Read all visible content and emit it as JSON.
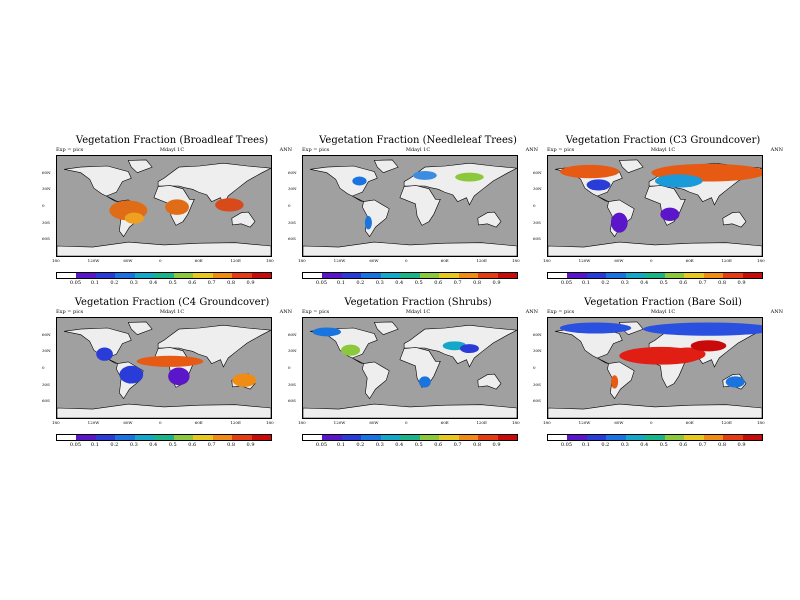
{
  "figure": {
    "colorbar": {
      "labels": [
        "0.05",
        "0.1",
        "0.2",
        "0.3",
        "0.4",
        "0.5",
        "0.6",
        "0.7",
        "0.8",
        "0.9"
      ],
      "colors": [
        "#ffffff",
        "#5a16c8",
        "#2a3cd8",
        "#1a74e0",
        "#14a8c8",
        "#1ab48a",
        "#8cc83c",
        "#e6c81e",
        "#f08c14",
        "#e63c14",
        "#c80a0a"
      ]
    },
    "lat_labels": [
      "60N",
      "30N",
      "0",
      "30S",
      "60S"
    ],
    "lon_labels": [
      "180",
      "120W",
      "60W",
      "0",
      "60E",
      "120E",
      "180"
    ],
    "land_color": "#eeeeee",
    "ocean_color": "#a0a0a0"
  },
  "panels": [
    {
      "title": "Vegetation Fraction (Broadleaf Trees)",
      "left_meta": "Exp = pics",
      "mid_meta": "Mdayl 1C",
      "right_meta": "ANN",
      "patches": [
        {
          "lon": -60,
          "lat": -8,
          "rx": 16,
          "ry": 9,
          "c": "#e06c18"
        },
        {
          "lon": 22,
          "lat": -2,
          "rx": 10,
          "ry": 7,
          "c": "#e06c18"
        },
        {
          "lon": 110,
          "lat": 2,
          "rx": 12,
          "ry": 6,
          "c": "#d84a1a"
        },
        {
          "lon": -50,
          "lat": -22,
          "rx": 8,
          "ry": 5,
          "c": "#f0a020"
        }
      ]
    },
    {
      "title": "Vegetation Fraction (Needleleaf Trees)",
      "left_meta": "Exp = pics",
      "mid_meta": "Mdayl 1C",
      "right_meta": "ANN",
      "patches": [
        {
          "lon": 25,
          "lat": 55,
          "rx": 10,
          "ry": 4,
          "c": "#3c8ce0"
        },
        {
          "lon": -85,
          "lat": 45,
          "rx": 6,
          "ry": 4,
          "c": "#1a74e0"
        },
        {
          "lon": 100,
          "lat": 52,
          "rx": 12,
          "ry": 4,
          "c": "#8cc83c"
        },
        {
          "lon": -70,
          "lat": -30,
          "rx": 3,
          "ry": 6,
          "c": "#1a74e0"
        }
      ]
    },
    {
      "title": "Vegetation Fraction (C3 Groundcover)",
      "left_meta": "Exp = pics",
      "mid_meta": "Mdayl 1C",
      "right_meta": "ANN",
      "patches": [
        {
          "lon": 90,
          "lat": 60,
          "rx": 48,
          "ry": 8,
          "c": "#e65a14"
        },
        {
          "lon": -110,
          "lat": 62,
          "rx": 25,
          "ry": 6,
          "c": "#e65a14"
        },
        {
          "lon": 40,
          "lat": 45,
          "rx": 20,
          "ry": 6,
          "c": "#1a9ad8"
        },
        {
          "lon": -95,
          "lat": 38,
          "rx": 10,
          "ry": 5,
          "c": "#2a3cd8"
        },
        {
          "lon": -60,
          "lat": -30,
          "rx": 7,
          "ry": 9,
          "c": "#5a16c8"
        },
        {
          "lon": 25,
          "lat": -15,
          "rx": 8,
          "ry": 6,
          "c": "#5a16c8"
        }
      ]
    },
    {
      "title": "Vegetation Fraction (C4 Groundcover)",
      "left_meta": "Exp = pics",
      "mid_meta": "Mdayl 1C",
      "right_meta": "ANN",
      "patches": [
        {
          "lon": 10,
          "lat": 12,
          "rx": 28,
          "ry": 5,
          "c": "#e65a14"
        },
        {
          "lon": 135,
          "lat": -22,
          "rx": 10,
          "ry": 6,
          "c": "#f08c14"
        },
        {
          "lon": -55,
          "lat": -12,
          "rx": 10,
          "ry": 8,
          "c": "#2a3cd8"
        },
        {
          "lon": 25,
          "lat": -15,
          "rx": 9,
          "ry": 8,
          "c": "#5a16c8"
        },
        {
          "lon": -100,
          "lat": 25,
          "rx": 7,
          "ry": 6,
          "c": "#2a3cd8"
        }
      ]
    },
    {
      "title": "Vegetation Fraction (Shrubs)",
      "left_meta": "Exp = pics",
      "mid_meta": "Mdayl 1C",
      "right_meta": "ANN",
      "patches": [
        {
          "lon": -100,
          "lat": 32,
          "rx": 8,
          "ry": 5,
          "c": "#8cc83c"
        },
        {
          "lon": 75,
          "lat": 40,
          "rx": 10,
          "ry": 4,
          "c": "#14a8c8"
        },
        {
          "lon": 25,
          "lat": -25,
          "rx": 5,
          "ry": 5,
          "c": "#1a74e0"
        },
        {
          "lon": -140,
          "lat": 65,
          "rx": 12,
          "ry": 4,
          "c": "#1a74e0"
        },
        {
          "lon": 100,
          "lat": 35,
          "rx": 8,
          "ry": 4,
          "c": "#2a3cd8"
        }
      ]
    },
    {
      "title": "Vegetation Fraction (Bare Soil)",
      "left_meta": "Exp = pics",
      "mid_meta": "Mdayl 1C",
      "right_meta": "ANN",
      "patches": [
        {
          "lon": 10,
          "lat": 22,
          "rx": 35,
          "ry": 8,
          "c": "#e01e14"
        },
        {
          "lon": 55,
          "lat": 25,
          "rx": 15,
          "ry": 6,
          "c": "#e01e14"
        },
        {
          "lon": 90,
          "lat": 40,
          "rx": 15,
          "ry": 5,
          "c": "#c80a0a"
        },
        {
          "lon": 90,
          "lat": 70,
          "rx": 55,
          "ry": 6,
          "c": "#2a50e0"
        },
        {
          "lon": -100,
          "lat": 72,
          "rx": 30,
          "ry": 5,
          "c": "#2a50e0"
        },
        {
          "lon": 135,
          "lat": -25,
          "rx": 8,
          "ry": 5,
          "c": "#1a74e0"
        },
        {
          "lon": -68,
          "lat": -25,
          "rx": 3,
          "ry": 6,
          "c": "#e65a14"
        }
      ]
    }
  ]
}
